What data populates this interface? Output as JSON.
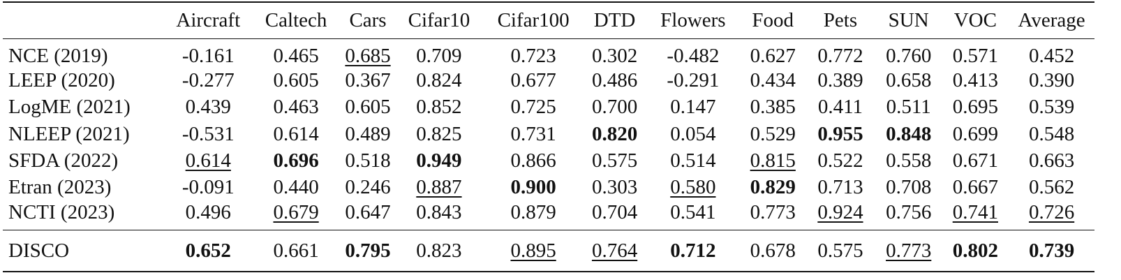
{
  "table": {
    "columns": [
      "",
      "Aircraft",
      "Caltech",
      "Cars",
      "Cifar10",
      "Cifar100",
      "DTD",
      "Flowers",
      "Food",
      "Pets",
      "SUN",
      "VOC",
      "Average"
    ],
    "rows": [
      {
        "method": "NCE (2019)",
        "cells": [
          {
            "v": "-0.161"
          },
          {
            "v": "0.465"
          },
          {
            "v": "0.685",
            "s": "u"
          },
          {
            "v": "0.709"
          },
          {
            "v": "0.723"
          },
          {
            "v": "0.302"
          },
          {
            "v": "-0.482"
          },
          {
            "v": "0.627"
          },
          {
            "v": "0.772"
          },
          {
            "v": "0.760"
          },
          {
            "v": "0.571"
          },
          {
            "v": "0.452"
          }
        ]
      },
      {
        "method": "LEEP (2020)",
        "cells": [
          {
            "v": "-0.277"
          },
          {
            "v": "0.605"
          },
          {
            "v": "0.367"
          },
          {
            "v": "0.824"
          },
          {
            "v": "0.677"
          },
          {
            "v": "0.486"
          },
          {
            "v": "-0.291"
          },
          {
            "v": "0.434"
          },
          {
            "v": "0.389"
          },
          {
            "v": "0.658"
          },
          {
            "v": "0.413"
          },
          {
            "v": "0.390"
          }
        ]
      },
      {
        "method": "LogME (2021)",
        "cells": [
          {
            "v": "0.439"
          },
          {
            "v": "0.463"
          },
          {
            "v": "0.605"
          },
          {
            "v": "0.852"
          },
          {
            "v": "0.725"
          },
          {
            "v": "0.700"
          },
          {
            "v": "0.147"
          },
          {
            "v": "0.385"
          },
          {
            "v": "0.411"
          },
          {
            "v": "0.511"
          },
          {
            "v": "0.695"
          },
          {
            "v": "0.539"
          }
        ]
      },
      {
        "method": "NLEEP (2021)",
        "cells": [
          {
            "v": "-0.531"
          },
          {
            "v": "0.614"
          },
          {
            "v": "0.489"
          },
          {
            "v": "0.825"
          },
          {
            "v": "0.731"
          },
          {
            "v": "0.820",
            "s": "b"
          },
          {
            "v": "0.054"
          },
          {
            "v": "0.529"
          },
          {
            "v": "0.955",
            "s": "b"
          },
          {
            "v": "0.848",
            "s": "b"
          },
          {
            "v": "0.699"
          },
          {
            "v": "0.548"
          }
        ]
      },
      {
        "method": "SFDA (2022)",
        "cells": [
          {
            "v": "0.614",
            "s": "u"
          },
          {
            "v": "0.696",
            "s": "b"
          },
          {
            "v": "0.518"
          },
          {
            "v": "0.949",
            "s": "b"
          },
          {
            "v": "0.866"
          },
          {
            "v": "0.575"
          },
          {
            "v": "0.514"
          },
          {
            "v": "0.815",
            "s": "u"
          },
          {
            "v": "0.522"
          },
          {
            "v": "0.558"
          },
          {
            "v": "0.671"
          },
          {
            "v": "0.663"
          }
        ]
      },
      {
        "method": "Etran (2023)",
        "cells": [
          {
            "v": "-0.091"
          },
          {
            "v": "0.440"
          },
          {
            "v": "0.246"
          },
          {
            "v": "0.887",
            "s": "u"
          },
          {
            "v": "0.900",
            "s": "b"
          },
          {
            "v": "0.303"
          },
          {
            "v": "0.580",
            "s": "u"
          },
          {
            "v": "0.829",
            "s": "b"
          },
          {
            "v": "0.713"
          },
          {
            "v": "0.708"
          },
          {
            "v": "0.667"
          },
          {
            "v": "0.562"
          }
        ]
      },
      {
        "method": "NCTI (2023)",
        "cells": [
          {
            "v": "0.496"
          },
          {
            "v": "0.679",
            "s": "u"
          },
          {
            "v": "0.647"
          },
          {
            "v": "0.843"
          },
          {
            "v": "0.879"
          },
          {
            "v": "0.704"
          },
          {
            "v": "0.541"
          },
          {
            "v": "0.773"
          },
          {
            "v": "0.924",
            "s": "u"
          },
          {
            "v": "0.756"
          },
          {
            "v": "0.741",
            "s": "u"
          },
          {
            "v": "0.726",
            "s": "u"
          }
        ]
      }
    ],
    "final_row": {
      "method": "DISCO",
      "cells": [
        {
          "v": "0.652",
          "s": "b"
        },
        {
          "v": "0.661"
        },
        {
          "v": "0.795",
          "s": "b"
        },
        {
          "v": "0.823"
        },
        {
          "v": "0.895",
          "s": "u"
        },
        {
          "v": "0.764",
          "s": "u"
        },
        {
          "v": "0.712",
          "s": "b"
        },
        {
          "v": "0.678"
        },
        {
          "v": "0.575"
        },
        {
          "v": "0.773",
          "s": "u"
        },
        {
          "v": "0.802",
          "s": "b"
        },
        {
          "v": "0.739",
          "s": "b"
        }
      ]
    }
  }
}
